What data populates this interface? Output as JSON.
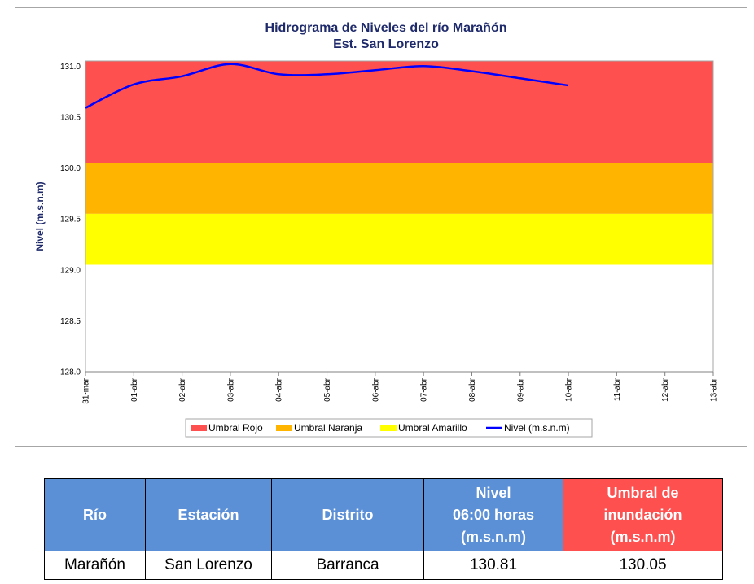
{
  "chart_data": {
    "type": "line",
    "title": "Hidrograma de Niveles del río Marañón",
    "subtitle": "Est. San Lorenzo",
    "ylabel": "Nivel (m.s.n.m)",
    "ylim": [
      128.0,
      131.05
    ],
    "y_ticks": [
      "128.0",
      "128.5",
      "129.0",
      "129.5",
      "130.0",
      "130.5",
      "131.0"
    ],
    "x_ticks": [
      "31-mar",
      "01-abr",
      "02-abr",
      "03-abr",
      "04-abr",
      "05-abr",
      "06-abr",
      "07-abr",
      "08-abr",
      "09-abr",
      "10-abr",
      "11-abr",
      "12-abr",
      "13-abr"
    ],
    "bands": [
      {
        "name": "Umbral Rojo",
        "from": 130.05,
        "to": 131.05,
        "color": "#ff5050"
      },
      {
        "name": "Umbral Naranja",
        "from": 129.55,
        "to": 130.05,
        "color": "#ffb400"
      },
      {
        "name": "Umbral Amarillo",
        "from": 129.05,
        "to": 129.55,
        "color": "#ffff00"
      }
    ],
    "series": [
      {
        "name": "Nivel (m.s.n.m)",
        "color": "#0000ff",
        "x": [
          0,
          1,
          2,
          3,
          4,
          5,
          6,
          7,
          8,
          9,
          10
        ],
        "values": [
          130.59,
          130.82,
          130.9,
          131.02,
          130.92,
          130.92,
          130.96,
          131.0,
          130.95,
          130.88,
          130.81
        ]
      }
    ],
    "legend": {
      "position": "bottom"
    },
    "grid": false
  },
  "table": {
    "headers": {
      "rio": "Río",
      "estacion": "Estación",
      "distrito": "Distrito",
      "nivel": [
        "Nivel",
        "06:00 horas",
        "(m.s.n.m)"
      ],
      "umbral": [
        "Umbral de",
        "inundación",
        "(m.s.n.m)"
      ]
    },
    "row": {
      "rio": "Marañón",
      "estacion": "San Lorenzo",
      "distrito": "Barranca",
      "nivel": "130.81",
      "umbral": "130.05"
    },
    "colors": {
      "header": "#5b8fd6",
      "umbral_header": "#ff5050"
    }
  }
}
